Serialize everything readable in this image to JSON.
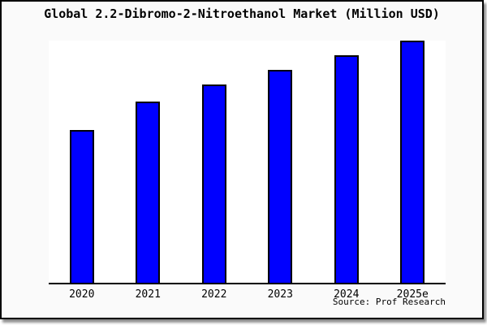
{
  "title": "Global 2.2-Dibromo-2-Nitroethanol Market (Million USD)",
  "source_note": "Source: Prof Research",
  "colors": {
    "bar_fill": "#0000ff",
    "bar_border": "#000000",
    "frame_background": "#fafafa",
    "plot_background": "#ffffff",
    "axis": "#000000",
    "text": "#000000"
  },
  "chart_data": {
    "type": "bar",
    "title": "Global 2.2-Dibromo-2-Nitroethanol Market (Million USD)",
    "categories": [
      "2020",
      "2021",
      "2022",
      "2023",
      "2024",
      "2025e"
    ],
    "values": [
      63,
      75,
      82,
      88,
      94,
      100
    ],
    "value_unit": "relative (% of 2025e, no y-axis shown)",
    "xlabel": "",
    "ylabel": "",
    "ylim": [
      0,
      100
    ],
    "grid": false,
    "legend": false,
    "annotations": [
      "Source: Prof Research"
    ]
  }
}
